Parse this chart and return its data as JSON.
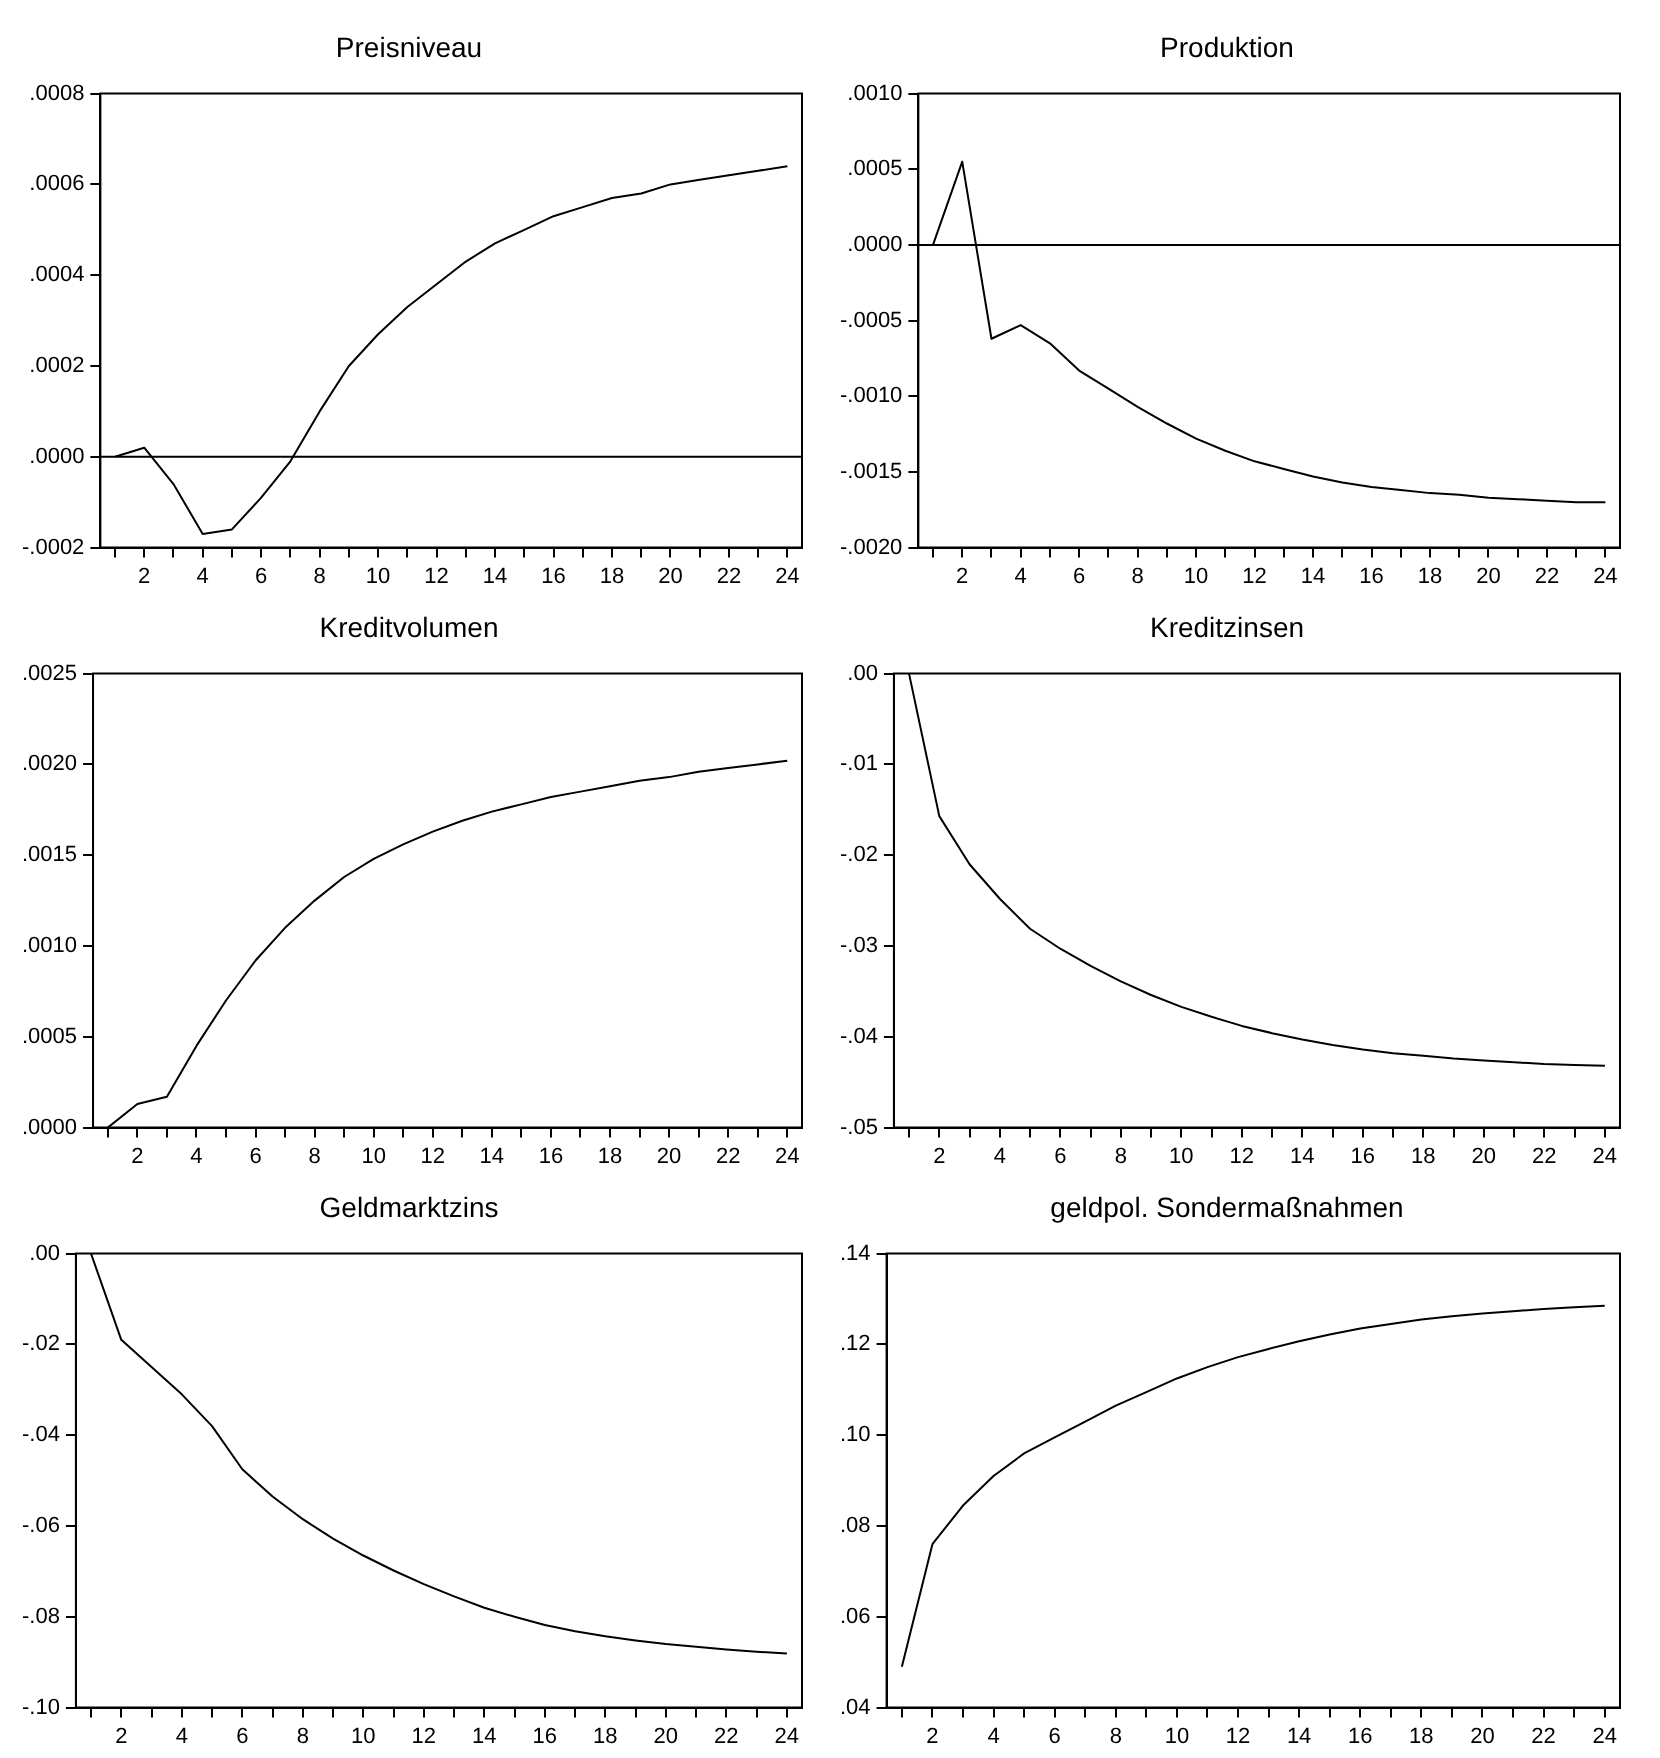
{
  "chart_data": [
    {
      "type": "line",
      "title": "Preisniveau",
      "x": [
        1,
        2,
        3,
        4,
        5,
        6,
        7,
        8,
        9,
        10,
        11,
        12,
        13,
        14,
        15,
        16,
        17,
        18,
        19,
        20,
        21,
        22,
        23,
        24
      ],
      "values": [
        0,
        2e-05,
        -6e-05,
        -0.00017,
        -0.00016,
        -9e-05,
        -1e-05,
        0.0001,
        0.0002,
        0.00027,
        0.00033,
        0.00038,
        0.00043,
        0.00047,
        0.0005,
        0.00053,
        0.00055,
        0.00057,
        0.00058,
        0.0006,
        0.00061,
        0.00062,
        0.00063,
        0.00064
      ],
      "color": "#000000",
      "xlim": [
        0.5,
        24.5
      ],
      "xticks": [
        {
          "value": 1,
          "label": null
        },
        2,
        {
          "value": 3,
          "label": null
        },
        4,
        {
          "value": 5,
          "label": null
        },
        6,
        {
          "value": 7,
          "label": null
        },
        8,
        {
          "value": 9,
          "label": null
        },
        10,
        {
          "value": 11,
          "label": null
        },
        12,
        {
          "value": 13,
          "label": null
        },
        14,
        {
          "value": 15,
          "label": null
        },
        16,
        {
          "value": 17,
          "label": null
        },
        18,
        {
          "value": 19,
          "label": null
        },
        20,
        {
          "value": 21,
          "label": null
        },
        22,
        {
          "value": 23,
          "label": null
        },
        24
      ],
      "ylim": [
        -0.0002,
        0.0008
      ],
      "yticks": [
        {
          "value": -0.0002,
          "label": "-.0002"
        },
        {
          "value": 0,
          "label": ".0000"
        },
        {
          "value": 0.0002,
          "label": ".0002"
        },
        {
          "value": 0.0004,
          "label": ".0004"
        },
        {
          "value": 0.0006,
          "label": ".0006"
        },
        {
          "value": 0.0008,
          "label": ".0008"
        }
      ],
      "ref_lines": [
        {
          "axis": "y",
          "value": 0,
          "color": "#000000"
        }
      ],
      "grid": false,
      "legend": false
    },
    {
      "type": "line",
      "title": "Produktion",
      "x": [
        1,
        2,
        3,
        4,
        5,
        6,
        7,
        8,
        9,
        10,
        11,
        12,
        13,
        14,
        15,
        16,
        17,
        18,
        19,
        20,
        21,
        22,
        23,
        24
      ],
      "values": [
        0,
        0.00055,
        -0.00062,
        -0.00053,
        -0.00065,
        -0.00083,
        -0.00095,
        -0.00107,
        -0.00118,
        -0.00128,
        -0.00136,
        -0.00143,
        -0.00148,
        -0.00153,
        -0.00157,
        -0.0016,
        -0.00162,
        -0.00164,
        -0.00165,
        -0.00167,
        -0.00168,
        -0.00169,
        -0.0017,
        -0.0017
      ],
      "color": "#000000",
      "xlim": [
        0.5,
        24.5
      ],
      "xticks": [
        {
          "value": 1,
          "label": null
        },
        2,
        {
          "value": 3,
          "label": null
        },
        4,
        {
          "value": 5,
          "label": null
        },
        6,
        {
          "value": 7,
          "label": null
        },
        8,
        {
          "value": 9,
          "label": null
        },
        10,
        {
          "value": 11,
          "label": null
        },
        12,
        {
          "value": 13,
          "label": null
        },
        14,
        {
          "value": 15,
          "label": null
        },
        16,
        {
          "value": 17,
          "label": null
        },
        18,
        {
          "value": 19,
          "label": null
        },
        20,
        {
          "value": 21,
          "label": null
        },
        22,
        {
          "value": 23,
          "label": null
        },
        24
      ],
      "ylim": [
        -0.002,
        0.001
      ],
      "yticks": [
        {
          "value": -0.002,
          "label": "-.0020"
        },
        {
          "value": -0.0015,
          "label": "-.0015"
        },
        {
          "value": -0.001,
          "label": "-.0010"
        },
        {
          "value": -0.0005,
          "label": "-.0005"
        },
        {
          "value": 0,
          "label": ".0000"
        },
        {
          "value": 0.0005,
          "label": ".0005"
        },
        {
          "value": 0.001,
          "label": ".0010"
        }
      ],
      "ref_lines": [
        {
          "axis": "y",
          "value": 0,
          "color": "#000000"
        }
      ],
      "grid": false,
      "legend": false
    },
    {
      "type": "line",
      "title": "Kreditvolumen",
      "x": [
        1,
        2,
        3,
        4,
        5,
        6,
        7,
        8,
        9,
        10,
        11,
        12,
        13,
        14,
        15,
        16,
        17,
        18,
        19,
        20,
        21,
        22,
        23,
        24
      ],
      "values": [
        0,
        0.00013,
        0.00017,
        0.00045,
        0.0007,
        0.00092,
        0.0011,
        0.00125,
        0.00138,
        0.00148,
        0.00156,
        0.00163,
        0.00169,
        0.00174,
        0.00178,
        0.00182,
        0.00185,
        0.00188,
        0.00191,
        0.00193,
        0.00196,
        0.00198,
        0.002,
        0.00202
      ],
      "color": "#000000",
      "xlim": [
        0.5,
        24.5
      ],
      "xticks": [
        {
          "value": 1,
          "label": null
        },
        2,
        {
          "value": 3,
          "label": null
        },
        4,
        {
          "value": 5,
          "label": null
        },
        6,
        {
          "value": 7,
          "label": null
        },
        8,
        {
          "value": 9,
          "label": null
        },
        10,
        {
          "value": 11,
          "label": null
        },
        12,
        {
          "value": 13,
          "label": null
        },
        14,
        {
          "value": 15,
          "label": null
        },
        16,
        {
          "value": 17,
          "label": null
        },
        18,
        {
          "value": 19,
          "label": null
        },
        20,
        {
          "value": 21,
          "label": null
        },
        22,
        {
          "value": 23,
          "label": null
        },
        24
      ],
      "ylim": [
        0,
        0.0025
      ],
      "yticks": [
        {
          "value": 0,
          "label": ".0000"
        },
        {
          "value": 0.0005,
          "label": ".0005"
        },
        {
          "value": 0.001,
          "label": ".0010"
        },
        {
          "value": 0.0015,
          "label": ".0015"
        },
        {
          "value": 0.002,
          "label": ".0020"
        },
        {
          "value": 0.0025,
          "label": ".0025"
        }
      ],
      "grid": false,
      "legend": false
    },
    {
      "type": "line",
      "title": "Kreditzinsen",
      "x": [
        1,
        2,
        3,
        4,
        5,
        6,
        7,
        8,
        9,
        10,
        11,
        12,
        13,
        14,
        15,
        16,
        17,
        18,
        19,
        20,
        21,
        22,
        23,
        24
      ],
      "values": [
        0,
        -0.0157,
        -0.021,
        -0.0248,
        -0.0281,
        -0.0303,
        -0.0322,
        -0.0339,
        -0.0354,
        -0.0367,
        -0.0378,
        -0.0388,
        -0.0396,
        -0.0403,
        -0.0409,
        -0.0414,
        -0.0418,
        -0.0421,
        -0.0424,
        -0.0426,
        -0.0428,
        -0.043,
        -0.0431,
        -0.0432
      ],
      "color": "#000000",
      "xlim": [
        0.5,
        24.5
      ],
      "xticks": [
        {
          "value": 1,
          "label": null
        },
        2,
        {
          "value": 3,
          "label": null
        },
        4,
        {
          "value": 5,
          "label": null
        },
        6,
        {
          "value": 7,
          "label": null
        },
        8,
        {
          "value": 9,
          "label": null
        },
        10,
        {
          "value": 11,
          "label": null
        },
        12,
        {
          "value": 13,
          "label": null
        },
        14,
        {
          "value": 15,
          "label": null
        },
        16,
        {
          "value": 17,
          "label": null
        },
        18,
        {
          "value": 19,
          "label": null
        },
        20,
        {
          "value": 21,
          "label": null
        },
        22,
        {
          "value": 23,
          "label": null
        },
        24
      ],
      "ylim": [
        -0.05,
        0
      ],
      "yticks": [
        {
          "value": -0.05,
          "label": "-.05"
        },
        {
          "value": -0.04,
          "label": "-.04"
        },
        {
          "value": -0.03,
          "label": "-.03"
        },
        {
          "value": -0.02,
          "label": "-.02"
        },
        {
          "value": -0.01,
          "label": "-.01"
        },
        {
          "value": 0,
          "label": ".00"
        }
      ],
      "grid": false,
      "legend": false
    },
    {
      "type": "line",
      "title": "Geldmarktzins",
      "x": [
        1,
        2,
        3,
        4,
        5,
        6,
        7,
        8,
        9,
        10,
        11,
        12,
        13,
        14,
        15,
        16,
        17,
        18,
        19,
        20,
        21,
        22,
        23,
        24
      ],
      "values": [
        0,
        -0.019,
        -0.025,
        -0.031,
        -0.038,
        -0.0475,
        -0.0535,
        -0.0585,
        -0.0628,
        -0.0665,
        -0.0698,
        -0.0728,
        -0.0755,
        -0.078,
        -0.08,
        -0.0818,
        -0.0832,
        -0.0843,
        -0.0852,
        -0.086,
        -0.0866,
        -0.0872,
        -0.0877,
        -0.0881
      ],
      "color": "#000000",
      "xlim": [
        0.5,
        24.5
      ],
      "xticks": [
        {
          "value": 1,
          "label": null
        },
        2,
        {
          "value": 3,
          "label": null
        },
        4,
        {
          "value": 5,
          "label": null
        },
        6,
        {
          "value": 7,
          "label": null
        },
        8,
        {
          "value": 9,
          "label": null
        },
        10,
        {
          "value": 11,
          "label": null
        },
        12,
        {
          "value": 13,
          "label": null
        },
        14,
        {
          "value": 15,
          "label": null
        },
        16,
        {
          "value": 17,
          "label": null
        },
        18,
        {
          "value": 19,
          "label": null
        },
        20,
        {
          "value": 21,
          "label": null
        },
        22,
        {
          "value": 23,
          "label": null
        },
        24
      ],
      "ylim": [
        -0.1,
        0
      ],
      "yticks": [
        {
          "value": -0.1,
          "label": "-.10"
        },
        {
          "value": -0.08,
          "label": "-.08"
        },
        {
          "value": -0.06,
          "label": "-.06"
        },
        {
          "value": -0.04,
          "label": "-.04"
        },
        {
          "value": -0.02,
          "label": "-.02"
        },
        {
          "value": 0,
          "label": ".00"
        }
      ],
      "grid": false,
      "legend": false
    },
    {
      "type": "line",
      "title": "geldpol. Sondermaßnahmen",
      "x": [
        1,
        2,
        3,
        4,
        5,
        6,
        7,
        8,
        9,
        10,
        11,
        12,
        13,
        14,
        15,
        16,
        17,
        18,
        19,
        20,
        21,
        22,
        23,
        24
      ],
      "values": [
        0.049,
        0.076,
        0.0845,
        0.091,
        0.096,
        0.0995,
        0.103,
        0.1065,
        0.1095,
        0.1125,
        0.115,
        0.1172,
        0.119,
        0.1207,
        0.1222,
        0.1235,
        0.1245,
        0.1255,
        0.1262,
        0.1268,
        0.1273,
        0.1278,
        0.1282,
        0.1285
      ],
      "color": "#000000",
      "xlim": [
        0.5,
        24.5
      ],
      "xticks": [
        {
          "value": 1,
          "label": null
        },
        2,
        {
          "value": 3,
          "label": null
        },
        4,
        {
          "value": 5,
          "label": null
        },
        6,
        {
          "value": 7,
          "label": null
        },
        8,
        {
          "value": 9,
          "label": null
        },
        10,
        {
          "value": 11,
          "label": null
        },
        12,
        {
          "value": 13,
          "label": null
        },
        14,
        {
          "value": 15,
          "label": null
        },
        16,
        {
          "value": 17,
          "label": null
        },
        18,
        {
          "value": 19,
          "label": null
        },
        20,
        {
          "value": 21,
          "label": null
        },
        22,
        {
          "value": 23,
          "label": null
        },
        24
      ],
      "ylim": [
        0.04,
        0.14
      ],
      "yticks": [
        {
          "value": 0.04,
          "label": ".04"
        },
        {
          "value": 0.06,
          "label": ".06"
        },
        {
          "value": 0.08,
          "label": ".08"
        },
        {
          "value": 0.1,
          "label": ".10"
        },
        {
          "value": 0.12,
          "label": ".12"
        },
        {
          "value": 0.14,
          "label": ".14"
        }
      ],
      "grid": false,
      "legend": false
    }
  ]
}
